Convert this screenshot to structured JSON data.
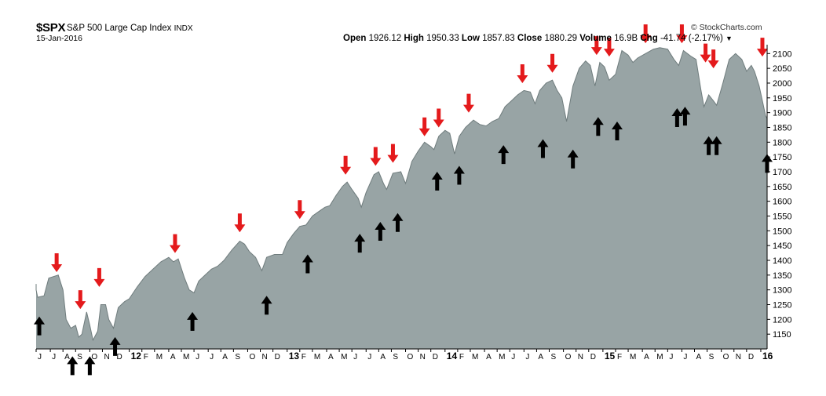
{
  "header": {
    "symbol": "$SPX",
    "index_name": "S&P 500 Large Cap Index",
    "exchange": "INDX",
    "as_of": "15-Jan-2016",
    "credit": "© StockCharts.com",
    "stats": [
      {
        "label": "Open",
        "value": "1926.12"
      },
      {
        "label": "High",
        "value": "1950.33"
      },
      {
        "label": "Low",
        "value": "1857.83"
      },
      {
        "label": "Close",
        "value": "1880.29"
      },
      {
        "label": "Volume",
        "value": "16.9B"
      },
      {
        "label": "Chg",
        "value": "-41.74 (-2.17%)"
      }
    ]
  },
  "chart_data": {
    "type": "area",
    "title": "S&P 500 Large Cap Index",
    "ylim": [
      1100,
      2130
    ],
    "xlim": [
      2011.41,
      2016.04
    ],
    "yticks": [
      1150,
      1200,
      1250,
      1300,
      1350,
      1400,
      1450,
      1500,
      1550,
      1600,
      1650,
      1700,
      1750,
      1800,
      1850,
      1900,
      1950,
      2000,
      2050,
      2100
    ],
    "xticks": [
      {
        "label": "J",
        "x": 2011.41
      },
      {
        "label": "J",
        "x": 2011.5
      },
      {
        "label": "A",
        "x": 2011.58
      },
      {
        "label": "S",
        "x": 2011.66
      },
      {
        "label": "O",
        "x": 2011.75
      },
      {
        "label": "N",
        "x": 2011.83
      },
      {
        "label": "D",
        "x": 2011.91
      },
      {
        "label": "12",
        "x": 2012.0,
        "bold": true
      },
      {
        "label": "F",
        "x": 2012.08
      },
      {
        "label": "M",
        "x": 2012.16
      },
      {
        "label": "A",
        "x": 2012.25
      },
      {
        "label": "M",
        "x": 2012.33
      },
      {
        "label": "J",
        "x": 2012.41
      },
      {
        "label": "J",
        "x": 2012.5
      },
      {
        "label": "A",
        "x": 2012.58
      },
      {
        "label": "S",
        "x": 2012.66
      },
      {
        "label": "O",
        "x": 2012.75
      },
      {
        "label": "N",
        "x": 2012.83
      },
      {
        "label": "D",
        "x": 2012.91
      },
      {
        "label": "13",
        "x": 2013.0,
        "bold": true
      },
      {
        "label": "F",
        "x": 2013.08
      },
      {
        "label": "M",
        "x": 2013.16
      },
      {
        "label": "A",
        "x": 2013.25
      },
      {
        "label": "M",
        "x": 2013.33
      },
      {
        "label": "J",
        "x": 2013.41
      },
      {
        "label": "J",
        "x": 2013.5
      },
      {
        "label": "A",
        "x": 2013.58
      },
      {
        "label": "S",
        "x": 2013.66
      },
      {
        "label": "O",
        "x": 2013.75
      },
      {
        "label": "N",
        "x": 2013.83
      },
      {
        "label": "D",
        "x": 2013.91
      },
      {
        "label": "14",
        "x": 2014.0,
        "bold": true
      },
      {
        "label": "F",
        "x": 2014.08
      },
      {
        "label": "M",
        "x": 2014.16
      },
      {
        "label": "A",
        "x": 2014.25
      },
      {
        "label": "M",
        "x": 2014.33
      },
      {
        "label": "J",
        "x": 2014.41
      },
      {
        "label": "J",
        "x": 2014.5
      },
      {
        "label": "A",
        "x": 2014.58
      },
      {
        "label": "S",
        "x": 2014.66
      },
      {
        "label": "O",
        "x": 2014.75
      },
      {
        "label": "N",
        "x": 2014.83
      },
      {
        "label": "D",
        "x": 2014.91
      },
      {
        "label": "15",
        "x": 2015.0,
        "bold": true
      },
      {
        "label": "F",
        "x": 2015.08
      },
      {
        "label": "M",
        "x": 2015.16
      },
      {
        "label": "A",
        "x": 2015.25
      },
      {
        "label": "M",
        "x": 2015.33
      },
      {
        "label": "J",
        "x": 2015.41
      },
      {
        "label": "J",
        "x": 2015.5
      },
      {
        "label": "A",
        "x": 2015.58
      },
      {
        "label": "S",
        "x": 2015.66
      },
      {
        "label": "O",
        "x": 2015.75
      },
      {
        "label": "N",
        "x": 2015.83
      },
      {
        "label": "D",
        "x": 2015.91
      },
      {
        "label": "16",
        "x": 2016.0,
        "bold": true
      }
    ],
    "series": [
      {
        "values": [
          [
            2011.38,
            1320
          ],
          [
            2011.4,
            1300
          ],
          [
            2011.42,
            1275
          ],
          [
            2011.46,
            1280
          ],
          [
            2011.49,
            1340
          ],
          [
            2011.52,
            1345
          ],
          [
            2011.55,
            1350
          ],
          [
            2011.58,
            1300
          ],
          [
            2011.6,
            1200
          ],
          [
            2011.63,
            1170
          ],
          [
            2011.66,
            1180
          ],
          [
            2011.68,
            1140
          ],
          [
            2011.7,
            1150
          ],
          [
            2011.73,
            1225
          ],
          [
            2011.75,
            1180
          ],
          [
            2011.77,
            1130
          ],
          [
            2011.8,
            1160
          ],
          [
            2011.82,
            1250
          ],
          [
            2011.85,
            1250
          ],
          [
            2011.87,
            1200
          ],
          [
            2011.9,
            1170
          ],
          [
            2011.93,
            1240
          ],
          [
            2011.97,
            1260
          ],
          [
            2012.0,
            1270
          ],
          [
            2012.05,
            1310
          ],
          [
            2012.1,
            1345
          ],
          [
            2012.15,
            1370
          ],
          [
            2012.2,
            1395
          ],
          [
            2012.25,
            1410
          ],
          [
            2012.28,
            1395
          ],
          [
            2012.31,
            1405
          ],
          [
            2012.35,
            1340
          ],
          [
            2012.38,
            1300
          ],
          [
            2012.41,
            1290
          ],
          [
            2012.44,
            1330
          ],
          [
            2012.48,
            1350
          ],
          [
            2012.52,
            1370
          ],
          [
            2012.56,
            1380
          ],
          [
            2012.6,
            1400
          ],
          [
            2012.65,
            1435
          ],
          [
            2012.7,
            1465
          ],
          [
            2012.73,
            1455
          ],
          [
            2012.76,
            1430
          ],
          [
            2012.8,
            1410
          ],
          [
            2012.84,
            1365
          ],
          [
            2012.87,
            1410
          ],
          [
            2012.92,
            1420
          ],
          [
            2012.97,
            1420
          ],
          [
            2013.0,
            1460
          ],
          [
            2013.04,
            1490
          ],
          [
            2013.08,
            1515
          ],
          [
            2013.12,
            1520
          ],
          [
            2013.16,
            1550
          ],
          [
            2013.2,
            1565
          ],
          [
            2013.24,
            1580
          ],
          [
            2013.27,
            1585
          ],
          [
            2013.31,
            1620
          ],
          [
            2013.35,
            1650
          ],
          [
            2013.38,
            1665
          ],
          [
            2013.41,
            1640
          ],
          [
            2013.45,
            1610
          ],
          [
            2013.47,
            1580
          ],
          [
            2013.5,
            1630
          ],
          [
            2013.55,
            1690
          ],
          [
            2013.58,
            1700
          ],
          [
            2013.61,
            1660
          ],
          [
            2013.63,
            1640
          ],
          [
            2013.67,
            1695
          ],
          [
            2013.72,
            1700
          ],
          [
            2013.75,
            1660
          ],
          [
            2013.79,
            1735
          ],
          [
            2013.83,
            1770
          ],
          [
            2013.87,
            1800
          ],
          [
            2013.91,
            1785
          ],
          [
            2013.93,
            1775
          ],
          [
            2013.96,
            1820
          ],
          [
            2014.0,
            1840
          ],
          [
            2014.03,
            1830
          ],
          [
            2014.06,
            1760
          ],
          [
            2014.09,
            1820
          ],
          [
            2014.13,
            1850
          ],
          [
            2014.18,
            1875
          ],
          [
            2014.22,
            1860
          ],
          [
            2014.26,
            1855
          ],
          [
            2014.3,
            1870
          ],
          [
            2014.34,
            1880
          ],
          [
            2014.38,
            1920
          ],
          [
            2014.42,
            1940
          ],
          [
            2014.46,
            1960
          ],
          [
            2014.5,
            1975
          ],
          [
            2014.54,
            1970
          ],
          [
            2014.57,
            1930
          ],
          [
            2014.6,
            1975
          ],
          [
            2014.64,
            2000
          ],
          [
            2014.68,
            2010
          ],
          [
            2014.71,
            1975
          ],
          [
            2014.74,
            1950
          ],
          [
            2014.77,
            1870
          ],
          [
            2014.81,
            1990
          ],
          [
            2014.85,
            2050
          ],
          [
            2014.89,
            2075
          ],
          [
            2014.92,
            2060
          ],
          [
            2014.95,
            1990
          ],
          [
            2014.98,
            2070
          ],
          [
            2015.01,
            2055
          ],
          [
            2015.04,
            2010
          ],
          [
            2015.08,
            2030
          ],
          [
            2015.12,
            2110
          ],
          [
            2015.16,
            2095
          ],
          [
            2015.19,
            2070
          ],
          [
            2015.22,
            2085
          ],
          [
            2015.27,
            2100
          ],
          [
            2015.32,
            2115
          ],
          [
            2015.36,
            2120
          ],
          [
            2015.41,
            2115
          ],
          [
            2015.45,
            2080
          ],
          [
            2015.48,
            2060
          ],
          [
            2015.51,
            2110
          ],
          [
            2015.56,
            2090
          ],
          [
            2015.59,
            2080
          ],
          [
            2015.62,
            1980
          ],
          [
            2015.64,
            1920
          ],
          [
            2015.67,
            1960
          ],
          [
            2015.7,
            1940
          ],
          [
            2015.72,
            1925
          ],
          [
            2015.76,
            2000
          ],
          [
            2015.8,
            2080
          ],
          [
            2015.84,
            2100
          ],
          [
            2015.88,
            2080
          ],
          [
            2015.91,
            2040
          ],
          [
            2015.94,
            2060
          ],
          [
            2015.96,
            2040
          ],
          [
            2015.99,
            1990
          ],
          [
            2016.01,
            1940
          ],
          [
            2016.03,
            1890
          ],
          [
            2016.04,
            1880
          ]
        ]
      }
    ],
    "annotations": {
      "down_arrows_red": [
        [
          2011.54,
          1360
        ],
        [
          2011.69,
          1235
        ],
        [
          2011.81,
          1310
        ],
        [
          2012.29,
          1425
        ],
        [
          2012.7,
          1495
        ],
        [
          2013.08,
          1540
        ],
        [
          2013.37,
          1690
        ],
        [
          2013.56,
          1720
        ],
        [
          2013.67,
          1730
        ],
        [
          2013.87,
          1820
        ],
        [
          2013.96,
          1850
        ],
        [
          2014.15,
          1900
        ],
        [
          2014.49,
          2000
        ],
        [
          2014.68,
          2035
        ],
        [
          2014.96,
          2095
        ],
        [
          2015.04,
          2090
        ],
        [
          2015.27,
          2135
        ],
        [
          2015.5,
          2135
        ],
        [
          2015.65,
          2070
        ],
        [
          2015.7,
          2050
        ],
        [
          2016.01,
          2090
        ]
      ],
      "up_arrows_black": [
        [
          2011.43,
          1210
        ],
        [
          2011.64,
          1075
        ],
        [
          2011.75,
          1075
        ],
        [
          2011.91,
          1140
        ],
        [
          2012.4,
          1225
        ],
        [
          2012.87,
          1280
        ],
        [
          2013.13,
          1420
        ],
        [
          2013.46,
          1490
        ],
        [
          2013.59,
          1530
        ],
        [
          2013.7,
          1560
        ],
        [
          2013.95,
          1700
        ],
        [
          2014.09,
          1720
        ],
        [
          2014.37,
          1790
        ],
        [
          2014.62,
          1810
        ],
        [
          2014.81,
          1775
        ],
        [
          2014.97,
          1885
        ],
        [
          2015.09,
          1870
        ],
        [
          2015.47,
          1915
        ],
        [
          2015.52,
          1920
        ],
        [
          2015.67,
          1820
        ],
        [
          2015.72,
          1820
        ],
        [
          2016.04,
          1760
        ]
      ]
    }
  }
}
